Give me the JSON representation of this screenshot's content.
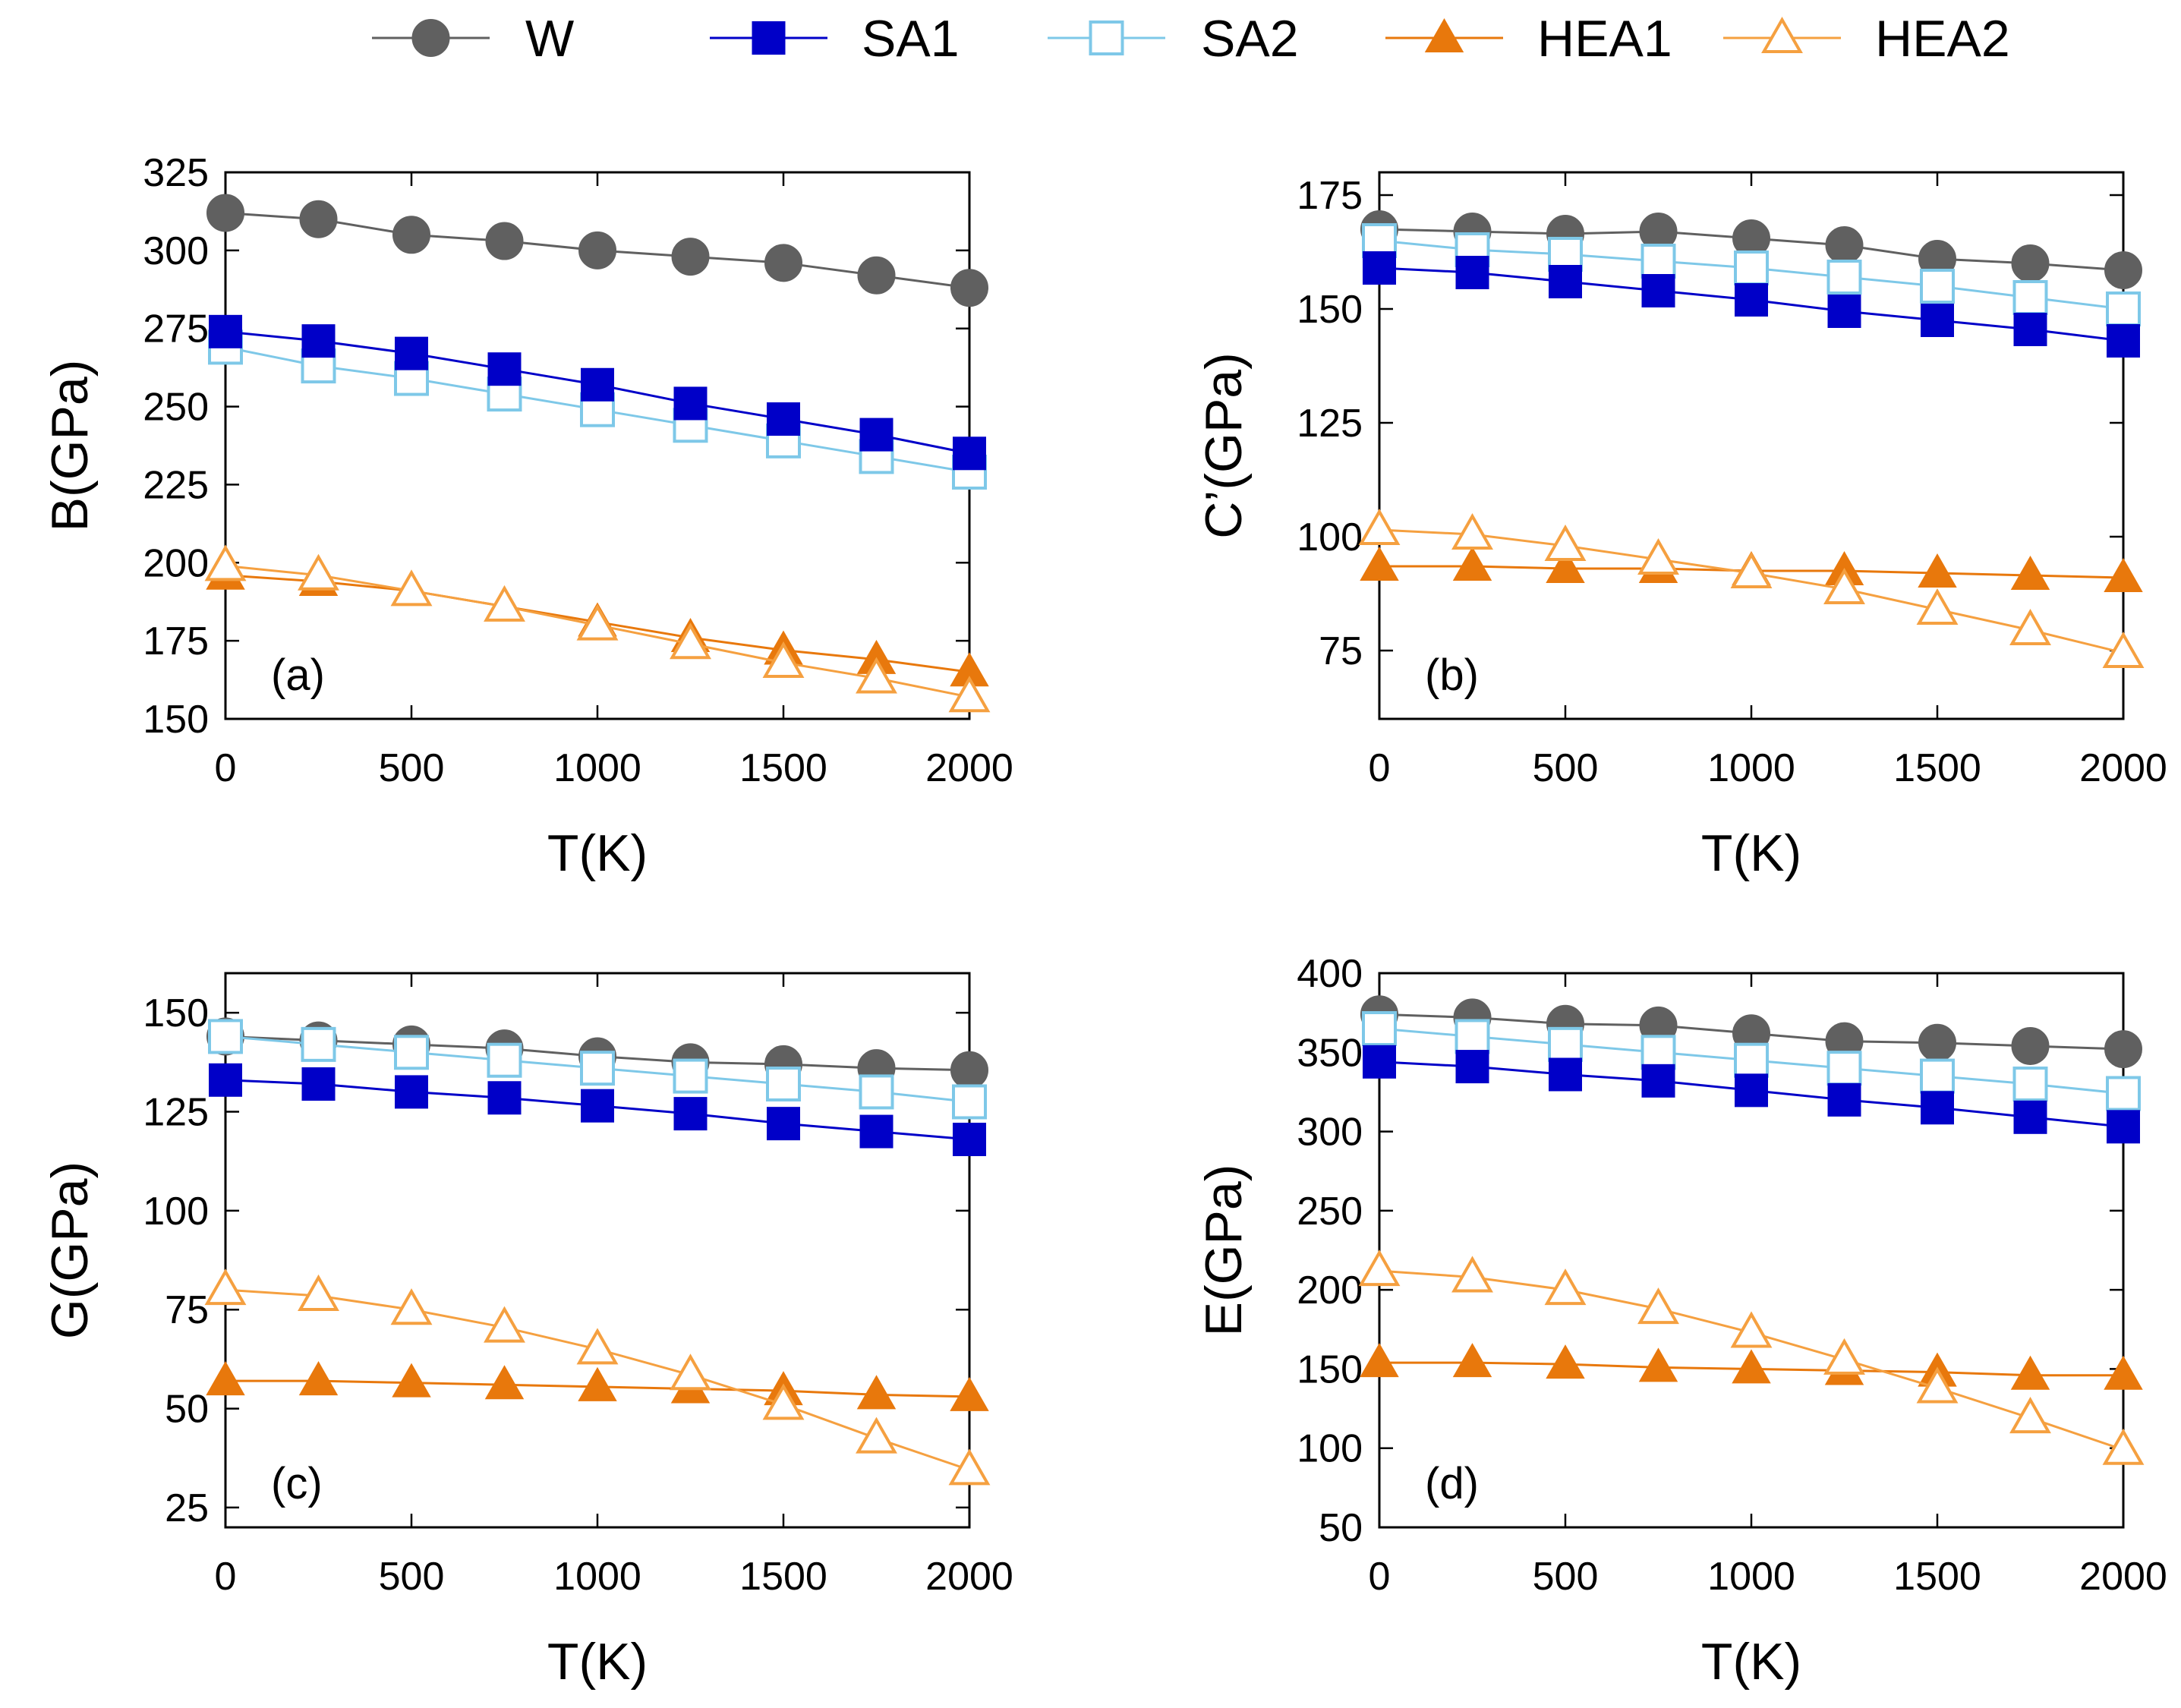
{
  "colors": {
    "W": "#606060",
    "SA1": "#0000c8",
    "SA2": "#7ec8e8",
    "HEA1": "#e8780c",
    "HEA2": "#f5a040",
    "axis": "#000000"
  },
  "legend": [
    {
      "key": "W",
      "label": "W",
      "marker": "circle",
      "filled": true
    },
    {
      "key": "SA1",
      "label": "SA1",
      "marker": "square",
      "filled": true
    },
    {
      "key": "SA2",
      "label": "SA2",
      "marker": "square",
      "filled": false
    },
    {
      "key": "HEA1",
      "label": "HEA1",
      "marker": "triangle",
      "filled": true
    },
    {
      "key": "HEA2",
      "label": "HEA2",
      "marker": "triangle",
      "filled": false
    }
  ],
  "chart_data": [
    {
      "type": "line",
      "panel": "(a)",
      "xlabel": "T(K)",
      "ylabel": "B(GPa)",
      "xlim": [
        0,
        2000
      ],
      "ylim": [
        150,
        325
      ],
      "xticks": [
        0,
        500,
        1000,
        1500,
        2000
      ],
      "yticks": [
        150,
        175,
        200,
        225,
        250,
        275,
        300,
        325
      ],
      "x": [
        0,
        250,
        500,
        750,
        1000,
        1250,
        1500,
        1750,
        2000
      ],
      "series": [
        {
          "name": "W",
          "values": [
            312,
            310,
            305,
            303,
            300,
            298,
            296,
            292,
            288
          ]
        },
        {
          "name": "SA1",
          "values": [
            274,
            271,
            267,
            262,
            257,
            251,
            246,
            241,
            235
          ]
        },
        {
          "name": "SA2",
          "values": [
            269,
            263,
            259,
            254,
            249,
            244,
            239,
            234,
            229
          ]
        },
        {
          "name": "HEA1",
          "values": [
            196,
            194,
            191,
            186,
            181,
            176,
            172,
            169,
            165
          ]
        },
        {
          "name": "HEA2",
          "values": [
            199,
            196,
            191,
            186,
            180,
            174,
            168,
            163,
            157
          ]
        }
      ]
    },
    {
      "type": "line",
      "panel": "(b)",
      "xlabel": "T(K)",
      "ylabel": "C’(GPa)",
      "xlim": [
        0,
        2000
      ],
      "ylim": [
        60,
        180
      ],
      "xticks": [
        0,
        500,
        1000,
        1500,
        2000
      ],
      "yticks": [
        75,
        100,
        125,
        150,
        175
      ],
      "x": [
        0,
        250,
        500,
        750,
        1000,
        1250,
        1500,
        1750,
        2000
      ],
      "series": [
        {
          "name": "W",
          "values": [
            167.5,
            167,
            166.5,
            167,
            165.5,
            164,
            161,
            160,
            158.5
          ]
        },
        {
          "name": "SA1",
          "values": [
            159,
            158,
            156,
            154,
            152,
            149.5,
            147.5,
            145.5,
            143
          ]
        },
        {
          "name": "SA2",
          "values": [
            165,
            163,
            162,
            160.5,
            159,
            157,
            155,
            152.5,
            150
          ]
        },
        {
          "name": "HEA1",
          "values": [
            93.5,
            93.5,
            93,
            93,
            92.5,
            92.5,
            92,
            91.5,
            91
          ]
        },
        {
          "name": "HEA2",
          "values": [
            101.5,
            100.5,
            98,
            95,
            92,
            88.5,
            84,
            79.5,
            74.5
          ]
        }
      ]
    },
    {
      "type": "line",
      "panel": "(c)",
      "xlabel": "T(K)",
      "ylabel": "G(GPa)",
      "xlim": [
        0,
        2000
      ],
      "ylim": [
        20,
        160
      ],
      "xticks": [
        0,
        500,
        1000,
        1500,
        2000
      ],
      "yticks": [
        25,
        50,
        75,
        100,
        125,
        150
      ],
      "x": [
        0,
        250,
        500,
        750,
        1000,
        1250,
        1500,
        1750,
        2000
      ],
      "series": [
        {
          "name": "W",
          "values": [
            144,
            143,
            142,
            141,
            139,
            137.5,
            137,
            136,
            135.5
          ]
        },
        {
          "name": "SA1",
          "values": [
            133,
            132,
            130,
            128.5,
            126.5,
            124.5,
            122,
            120,
            118
          ]
        },
        {
          "name": "SA2",
          "values": [
            144,
            142,
            140,
            138,
            136,
            134,
            132,
            130,
            127.5
          ]
        },
        {
          "name": "HEA1",
          "values": [
            57,
            57,
            56.5,
            56,
            55.5,
            55,
            54.5,
            53.5,
            53
          ]
        },
        {
          "name": "HEA2",
          "values": [
            80,
            78.5,
            75,
            70.5,
            65,
            58.5,
            51,
            42.5,
            34.5
          ]
        }
      ]
    },
    {
      "type": "line",
      "panel": "(d)",
      "xlabel": "T(K)",
      "ylabel": "E(GPa)",
      "xlim": [
        0,
        2000
      ],
      "ylim": [
        50,
        400
      ],
      "xticks": [
        0,
        500,
        1000,
        1500,
        2000
      ],
      "yticks": [
        50,
        100,
        150,
        200,
        250,
        300,
        350,
        400
      ],
      "x": [
        0,
        250,
        500,
        750,
        1000,
        1250,
        1500,
        1750,
        2000
      ],
      "series": [
        {
          "name": "W",
          "values": [
            374,
            372,
            368,
            367,
            362,
            357,
            356,
            354,
            352
          ]
        },
        {
          "name": "SA1",
          "values": [
            344,
            341,
            336,
            332,
            326,
            320,
            315,
            309,
            303
          ]
        },
        {
          "name": "SA2",
          "values": [
            365,
            360,
            355,
            350,
            345,
            340,
            335,
            330,
            324
          ]
        },
        {
          "name": "HEA1",
          "values": [
            154,
            154,
            153,
            151,
            150,
            149,
            148,
            146,
            146
          ]
        },
        {
          "name": "HEA2",
          "values": [
            212,
            208,
            200,
            188,
            173,
            156,
            138,
            119,
            99
          ]
        }
      ]
    }
  ]
}
